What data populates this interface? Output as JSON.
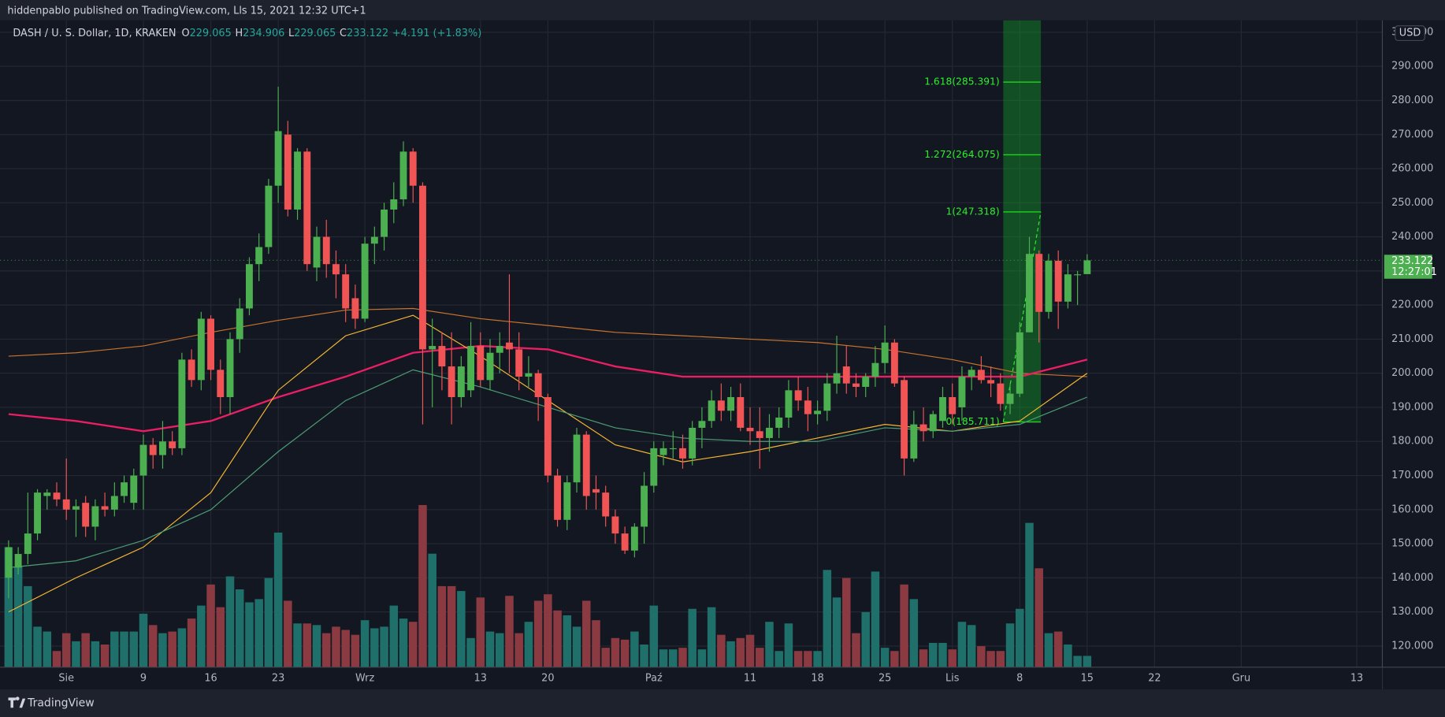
{
  "header": "hiddenpablo published on TradingView.com, Lls 15, 2021 12:32 UTC+1",
  "footer": "TradingView",
  "currency": "USD",
  "chart_data": {
    "type": "candlestick",
    "title": "DASH / U. S. Dollar, 1D, KRAKEN",
    "ohlc_labels": [
      "O",
      "H",
      "L",
      "C"
    ],
    "change": "+4.191 (+1.83%)",
    "countdown": "12:27:01",
    "up_color": "#4caf50",
    "down_color": "#f05454",
    "volume_up_color": "#1f6f6a",
    "volume_down_color": "#8a3a40",
    "x": [
      "2021-07-26",
      "2021-07-27",
      "2021-07-28",
      "2021-07-29",
      "2021-07-30",
      "2021-07-31",
      "2021-08-01",
      "2021-08-02",
      "2021-08-03",
      "2021-08-04",
      "2021-08-05",
      "2021-08-06",
      "2021-08-07",
      "2021-08-08",
      "2021-08-09",
      "2021-08-10",
      "2021-08-11",
      "2021-08-12",
      "2021-08-13",
      "2021-08-14",
      "2021-08-15",
      "2021-08-16",
      "2021-08-17",
      "2021-08-18",
      "2021-08-19",
      "2021-08-20",
      "2021-08-21",
      "2021-08-22",
      "2021-08-23",
      "2021-08-24",
      "2021-08-25",
      "2021-08-26",
      "2021-08-27",
      "2021-08-28",
      "2021-08-29",
      "2021-08-30",
      "2021-08-31",
      "2021-09-01",
      "2021-09-02",
      "2021-09-03",
      "2021-09-04",
      "2021-09-05",
      "2021-09-06",
      "2021-09-07",
      "2021-09-08",
      "2021-09-09",
      "2021-09-10",
      "2021-09-11",
      "2021-09-12",
      "2021-09-13",
      "2021-09-14",
      "2021-09-15",
      "2021-09-16",
      "2021-09-17",
      "2021-09-18",
      "2021-09-19",
      "2021-09-20",
      "2021-09-21",
      "2021-09-22",
      "2021-09-23",
      "2021-09-24",
      "2021-09-25",
      "2021-09-26",
      "2021-09-27",
      "2021-09-28",
      "2021-09-29",
      "2021-09-30",
      "2021-10-01",
      "2021-10-02",
      "2021-10-03",
      "2021-10-04",
      "2021-10-05",
      "2021-10-06",
      "2021-10-07",
      "2021-10-08",
      "2021-10-09",
      "2021-10-10",
      "2021-10-11",
      "2021-10-12",
      "2021-10-13",
      "2021-10-14",
      "2021-10-15",
      "2021-10-16",
      "2021-10-17",
      "2021-10-18",
      "2021-10-19",
      "2021-10-20",
      "2021-10-21",
      "2021-10-22",
      "2021-10-23",
      "2021-10-24",
      "2021-10-25",
      "2021-10-26",
      "2021-10-27",
      "2021-10-28",
      "2021-10-29",
      "2021-10-30",
      "2021-10-31",
      "2021-11-01",
      "2021-11-02",
      "2021-11-03",
      "2021-11-04",
      "2021-11-05",
      "2021-11-06",
      "2021-11-07",
      "2021-11-08",
      "2021-11-09",
      "2021-11-10",
      "2021-11-11",
      "2021-11-12",
      "2021-11-13",
      "2021-11-14",
      "2021-11-15"
    ],
    "open": [
      140,
      143,
      147,
      153,
      164,
      165,
      163,
      160,
      162,
      155,
      161,
      160,
      164,
      162,
      170,
      179,
      176,
      180,
      178,
      204,
      198,
      216,
      201,
      193,
      210,
      219,
      232,
      237,
      255,
      270,
      248,
      265,
      231,
      240,
      232,
      229,
      222,
      216,
      238,
      240,
      248,
      251,
      265,
      255,
      207,
      208,
      202,
      193,
      195,
      208,
      198,
      206,
      209,
      207,
      199,
      200,
      193,
      170,
      157,
      168,
      182,
      166,
      165,
      158,
      153,
      148,
      155,
      167,
      176,
      178,
      178,
      175,
      184,
      186,
      192,
      189,
      193,
      184,
      183,
      181,
      184,
      187,
      195,
      192,
      188,
      189,
      197,
      202,
      197,
      196,
      199,
      203,
      209,
      198,
      175,
      185,
      183,
      186,
      193,
      190,
      199,
      201,
      198,
      197,
      191,
      194,
      212,
      235,
      218,
      233,
      221,
      229,
      229.065
    ],
    "high": [
      151,
      149,
      165,
      166,
      166,
      168,
      175,
      163,
      164,
      163,
      165,
      168,
      170,
      172,
      182,
      181,
      186,
      183,
      206,
      207,
      218,
      217,
      204,
      212,
      222,
      234,
      241,
      257,
      284,
      274,
      266,
      266,
      243,
      245,
      236,
      232,
      226,
      240,
      243,
      250,
      256,
      268,
      266,
      256,
      216,
      212,
      212,
      205,
      215,
      212,
      210,
      212,
      229,
      212,
      205,
      201,
      194,
      172,
      170,
      184,
      183,
      170,
      167,
      160,
      155,
      156,
      171,
      180,
      180,
      183,
      182,
      186,
      190,
      195,
      197,
      196,
      197,
      190,
      190,
      188,
      190,
      198,
      199,
      196,
      192,
      200,
      211,
      208,
      200,
      200,
      208,
      214,
      210,
      199,
      189,
      190,
      189,
      196,
      197,
      202,
      202,
      205,
      202,
      200,
      197,
      215,
      240,
      236,
      235,
      236,
      232,
      230,
      234.906
    ],
    "low": [
      134,
      141,
      144,
      151,
      160,
      161,
      157,
      152,
      152,
      151,
      158,
      158,
      162,
      160,
      160,
      172,
      172,
      176,
      176,
      196,
      195,
      198,
      188,
      188,
      206,
      217,
      227,
      235,
      250,
      246,
      245,
      230,
      227,
      228,
      222,
      215,
      213,
      215,
      232,
      236,
      244,
      249,
      250,
      185,
      190,
      195,
      185,
      190,
      193,
      196,
      195,
      200,
      200,
      195,
      196,
      186,
      168,
      155,
      154,
      165,
      160,
      160,
      155,
      150,
      147,
      146,
      150,
      165,
      173,
      175,
      172,
      173,
      178,
      184,
      186,
      186,
      183,
      179,
      172,
      177,
      181,
      184,
      189,
      183,
      185,
      186,
      194,
      194,
      193,
      193,
      196,
      200,
      196,
      170,
      174,
      180,
      181,
      184,
      185,
      186,
      195,
      197,
      193,
      189,
      188,
      193,
      212,
      209,
      216,
      213,
      219,
      220,
      229.065
    ],
    "close": [
      149,
      147,
      153,
      165,
      165,
      163,
      160,
      161,
      155,
      161,
      160,
      164,
      168,
      170,
      179,
      176,
      180,
      178,
      204,
      198,
      216,
      201,
      193,
      210,
      219,
      232,
      237,
      255,
      271,
      248,
      265,
      232,
      240,
      232,
      229,
      219,
      216,
      238,
      240,
      248,
      251,
      265,
      255,
      207,
      208,
      202,
      193,
      202,
      208,
      198,
      206,
      208,
      207,
      199,
      200,
      193,
      170,
      157,
      168,
      182,
      164,
      165,
      158,
      153,
      148,
      155,
      167,
      178,
      178,
      178,
      175,
      184,
      186,
      192,
      189,
      193,
      184,
      183,
      181,
      184,
      187,
      195,
      192,
      188,
      189,
      197,
      200,
      197,
      196,
      199,
      203,
      209,
      197,
      175,
      185,
      183,
      188,
      193,
      188,
      199,
      201,
      198,
      197,
      191,
      194,
      212,
      235,
      218,
      233,
      221,
      229,
      229,
      233.122
    ],
    "volume": [
      74,
      62,
      50,
      25,
      22,
      10,
      21,
      16,
      21,
      16,
      14,
      22,
      22,
      22,
      33,
      26,
      21,
      22,
      24,
      30,
      38,
      51,
      37,
      56,
      48,
      40,
      42,
      55,
      83,
      41,
      27,
      27,
      26,
      21,
      25,
      23,
      20,
      29,
      24,
      25,
      38,
      30,
      28,
      100,
      70,
      50,
      50,
      47,
      18,
      43,
      22,
      21,
      44,
      21,
      28,
      41,
      45,
      35,
      32,
      25,
      41,
      29,
      12,
      18,
      17,
      22,
      14,
      38,
      11,
      11,
      12,
      36,
      11,
      37,
      20,
      16,
      18,
      20,
      12,
      28,
      10,
      27,
      10,
      10,
      10,
      60,
      43,
      55,
      21,
      34,
      59,
      12,
      10,
      51,
      42,
      11,
      15,
      15,
      11,
      28,
      26,
      13,
      10,
      10,
      27,
      36,
      89,
      61,
      21,
      22,
      14,
      7,
      7
    ],
    "indicators": {
      "x": [
        "2021-07-26",
        "2021-08-02",
        "2021-08-09",
        "2021-08-16",
        "2021-08-23",
        "2021-08-30",
        "2021-09-06",
        "2021-09-13",
        "2021-09-20",
        "2021-09-27",
        "2021-10-04",
        "2021-10-11",
        "2021-10-18",
        "2021-10-25",
        "2021-11-01",
        "2021-11-08",
        "2021-11-15"
      ],
      "series": [
        {
          "color": "#c8742c",
          "width": 1,
          "values": [
            205,
            206,
            208,
            212,
            215.5,
            218.5,
            219,
            216,
            214,
            212,
            211,
            210,
            209,
            207,
            204,
            200,
            199
          ]
        },
        {
          "color": "#e91e63",
          "width": 2,
          "values": [
            188,
            186,
            183,
            186,
            193,
            199,
            206,
            208,
            207,
            202,
            199,
            199,
            199,
            199,
            199,
            199,
            204
          ]
        },
        {
          "color": "#f5b731",
          "width": 1,
          "values": [
            130,
            140,
            149,
            165,
            195,
            211,
            217,
            205,
            192,
            179,
            174,
            177,
            181,
            185,
            183,
            186,
            200
          ]
        },
        {
          "color": "#4c9e74",
          "width": 1,
          "values": [
            143,
            145,
            151,
            160,
            177,
            192,
            201,
            196,
            190,
            184,
            181,
            180,
            180,
            184,
            183,
            185,
            193
          ]
        }
      ]
    },
    "fib_levels": [
      {
        "value": 285.391,
        "label": "1.618(285.391)"
      },
      {
        "value": 264.075,
        "label": "1.272(264.075)"
      },
      {
        "value": 247.318,
        "label": "1(247.318)"
      },
      {
        "value": 185.711,
        "label": "0(185.711)"
      }
    ],
    "ylim": [
      113.78,
      303.51
    ],
    "yticks": [
      {
        "value": 120,
        "label": "120.000"
      },
      {
        "value": 130,
        "label": "130.000"
      },
      {
        "value": 140,
        "label": "140.000"
      },
      {
        "value": 150,
        "label": "150.000"
      },
      {
        "value": 160,
        "label": "160.000"
      },
      {
        "value": 170,
        "label": "170.000"
      },
      {
        "value": 180,
        "label": "180.000"
      },
      {
        "value": 190,
        "label": "190.000"
      },
      {
        "value": 200,
        "label": "200.000"
      },
      {
        "value": 210,
        "label": "210.000"
      },
      {
        "value": 220,
        "label": "220.000"
      },
      {
        "value": 230,
        "label": "230.000"
      },
      {
        "value": 240,
        "label": "240.000"
      },
      {
        "value": 250,
        "label": "250.000"
      },
      {
        "value": 260,
        "label": "260.000"
      },
      {
        "value": 270,
        "label": "270.000"
      },
      {
        "value": 280,
        "label": "280.000"
      },
      {
        "value": 290,
        "label": "290.000"
      },
      {
        "value": 300,
        "label": "300.000"
      }
    ],
    "xticks": [
      {
        "value": "2021-08-01",
        "label": "Sie"
      },
      {
        "value": "2021-08-09",
        "label": "9"
      },
      {
        "value": "2021-08-16",
        "label": "16"
      },
      {
        "value": "2021-08-23",
        "label": "23"
      },
      {
        "value": "2021-09-01",
        "label": "Wrz"
      },
      {
        "value": "2021-09-13",
        "label": "13"
      },
      {
        "value": "2021-09-20",
        "label": "20"
      },
      {
        "value": "2021-10-01",
        "label": "Paź"
      },
      {
        "value": "2021-10-11",
        "label": "11"
      },
      {
        "value": "2021-10-18",
        "label": "18"
      },
      {
        "value": "2021-10-25",
        "label": "25"
      },
      {
        "value": "2021-11-01",
        "label": "Lis"
      },
      {
        "value": "2021-11-08",
        "label": "8"
      },
      {
        "value": "2021-11-15",
        "label": "15"
      },
      {
        "value": "2021-11-22",
        "label": "22"
      },
      {
        "value": "2021-12-01",
        "label": "Gru"
      },
      {
        "value": "2021-12-13",
        "label": "13"
      }
    ],
    "grid": true
  }
}
